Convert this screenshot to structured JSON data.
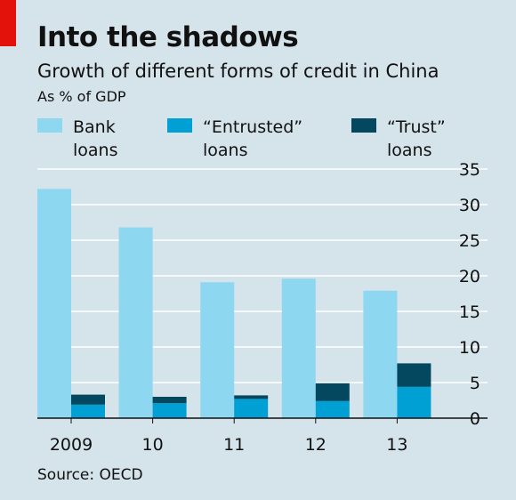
{
  "header": {
    "title": "Into the shadows",
    "subtitle": "Growth of different forms of credit in China",
    "unit": "As % of GDP"
  },
  "legend": [
    {
      "line1": "Bank",
      "line2": "loans",
      "color": "#8dd7f1"
    },
    {
      "line1": "“Entrusted”",
      "line2": "loans",
      "color": "#009fd4"
    },
    {
      "line1": "“Trust”",
      "line2": "loans",
      "color": "#04485f"
    }
  ],
  "source": "Source: OECD",
  "chart_data": {
    "type": "bar",
    "categories": [
      "2009",
      "10",
      "11",
      "12",
      "13"
    ],
    "ylim": [
      0,
      35
    ],
    "yticks": [
      "0",
      "5",
      "10",
      "15",
      "20",
      "25",
      "30",
      "35"
    ],
    "grid": true,
    "y_axis_side": "right",
    "series": [
      {
        "name": "Bank loans",
        "values": [
          32.2,
          26.8,
          19.1,
          19.6,
          17.9
        ],
        "color": "#8dd7f1"
      },
      {
        "name": "“Entrusted” loans",
        "values": [
          1.9,
          2.1,
          2.7,
          2.4,
          4.4
        ],
        "color": "#009fd4"
      },
      {
        "name": "“Trust” loans",
        "values": [
          1.4,
          0.9,
          0.5,
          2.5,
          3.3
        ],
        "color": "#04485f"
      }
    ],
    "stacking": "Entrusted and Trust loans stacked in second bar of each group"
  }
}
